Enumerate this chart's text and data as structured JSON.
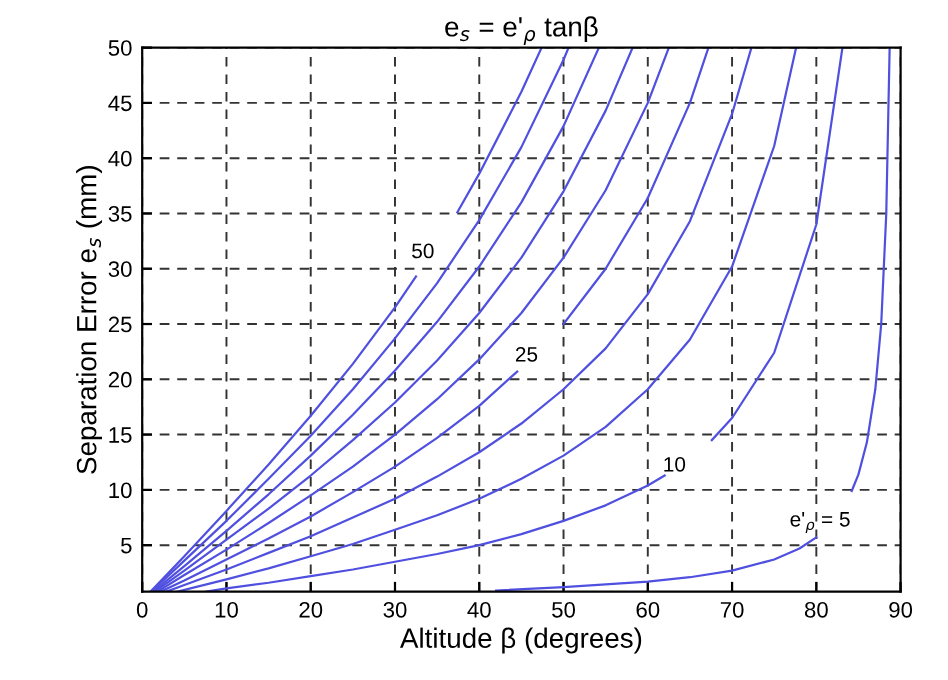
{
  "chart_data": {
    "type": "line",
    "title": "e$_{s}$ = e'$_{ρ}$ tanβ",
    "xlabel": "Altitude β (degrees)",
    "ylabel": "Separation Error e$_{s}$ (mm)",
    "xlim": [
      0,
      90
    ],
    "ylim": [
      0.8,
      50
    ],
    "xticks": [
      0,
      10,
      20,
      30,
      40,
      50,
      60,
      70,
      80,
      90
    ],
    "yticks": [
      5,
      10,
      15,
      20,
      25,
      30,
      35,
      40,
      45,
      50
    ],
    "grid": true,
    "marker": "none",
    "line_style": "solid",
    "series": [
      {
        "color": "#5050e0",
        "x": [
          1,
          5,
          10,
          15,
          20,
          25,
          30,
          32.5,
          35,
          37.4,
          40,
          45,
          47.4
        ],
        "values": [
          0.8,
          4.0,
          8.1,
          12.3,
          16.7,
          21.4,
          26.5,
          29.3,
          null,
          35.1,
          38.6,
          46.0,
          50
        ]
      },
      {
        "color": "#5050e0",
        "x": [
          1.1,
          5,
          10,
          15,
          20,
          25,
          30,
          35,
          40,
          45,
          50,
          50.6
        ],
        "values": [
          0.8,
          3.6,
          7.2,
          11.0,
          14.9,
          19.1,
          23.7,
          28.7,
          34.4,
          41.0,
          48.9,
          50
        ]
      },
      {
        "color": "#5050e0",
        "x": [
          1.3,
          5,
          10,
          15,
          20,
          25,
          30,
          35,
          40,
          45,
          50,
          54.2
        ],
        "values": [
          0.8,
          3.1,
          6.3,
          9.6,
          13.1,
          16.8,
          20.8,
          25.2,
          30.2,
          36.0,
          42.9,
          50
        ]
      },
      {
        "color": "#5050e0",
        "x": [
          1.5,
          5,
          10,
          15,
          20,
          25,
          30,
          35,
          40,
          45,
          50,
          55,
          58.2
        ],
        "values": [
          0.8,
          2.7,
          5.5,
          8.3,
          11.3,
          14.5,
          17.9,
          21.7,
          26.0,
          31.0,
          37.0,
          44.3,
          50
        ]
      },
      {
        "color": "#5050e0",
        "x": [
          1.8,
          5,
          10,
          15,
          20,
          25,
          30,
          35,
          40,
          45,
          50,
          55,
          60,
          62.5
        ],
        "values": [
          0.8,
          2.3,
          4.6,
          7.0,
          9.5,
          12.1,
          15.0,
          18.2,
          21.8,
          26.0,
          31.0,
          37.1,
          45.0,
          50
        ]
      },
      {
        "color": "#5050e0",
        "x": [
          2.2,
          5,
          10,
          15,
          20,
          25,
          30,
          35,
          40,
          44.5,
          47,
          50,
          55,
          60,
          65,
          67.2
        ],
        "values": [
          0.8,
          1.8,
          3.7,
          5.6,
          7.6,
          9.8,
          12.1,
          14.7,
          17.6,
          20.7,
          null,
          25.0,
          30.0,
          36.4,
          45.0,
          50
        ]
      },
      {
        "color": "#5050e0",
        "x": [
          2.9,
          5,
          10,
          15,
          20,
          25,
          30,
          35,
          40,
          45,
          50,
          55,
          60,
          65,
          70,
          72.3
        ],
        "values": [
          0.8,
          1.4,
          2.8,
          4.3,
          5.8,
          7.5,
          9.2,
          11.2,
          13.4,
          16.0,
          19.1,
          22.8,
          27.7,
          34.3,
          44.0,
          50
        ]
      },
      {
        "color": "#5050e0",
        "x": [
          4.2,
          10,
          15,
          20,
          25,
          30,
          35,
          40,
          45,
          50,
          55,
          60,
          65,
          70,
          75,
          77.6
        ],
        "values": [
          0.8,
          1.9,
          2.9,
          4.0,
          5.1,
          6.4,
          7.7,
          9.2,
          11.0,
          13.1,
          15.7,
          19.1,
          23.6,
          30.2,
          41.1,
          50
        ]
      },
      {
        "color": "#5050e0",
        "x": [
          7.6,
          10,
          15,
          20,
          25,
          30,
          35,
          40,
          45,
          50,
          55,
          60,
          62,
          65,
          67.6,
          70,
          75,
          80,
          83.1
        ],
        "values": [
          0.8,
          1.1,
          1.6,
          2.2,
          2.8,
          3.5,
          4.2,
          5.0,
          6.0,
          7.2,
          8.6,
          10.4,
          11.3,
          null,
          14.5,
          16.5,
          22.4,
          34.0,
          50
        ]
      },
      {
        "color": "#5050e0",
        "x": [
          42,
          50,
          60,
          65,
          70,
          75,
          78,
          80,
          82,
          84.2,
          85,
          86,
          87,
          87.7,
          88.3,
          88.7
        ],
        "values": [
          0.9,
          1.2,
          1.7,
          2.1,
          2.7,
          3.7,
          4.7,
          5.7,
          null,
          9.9,
          11.4,
          14.3,
          19.1,
          25,
          35,
          50
        ]
      }
    ],
    "annotations": [
      "50",
      "25",
      "10",
      "e'$_{ρ}$ = 5"
    ]
  }
}
